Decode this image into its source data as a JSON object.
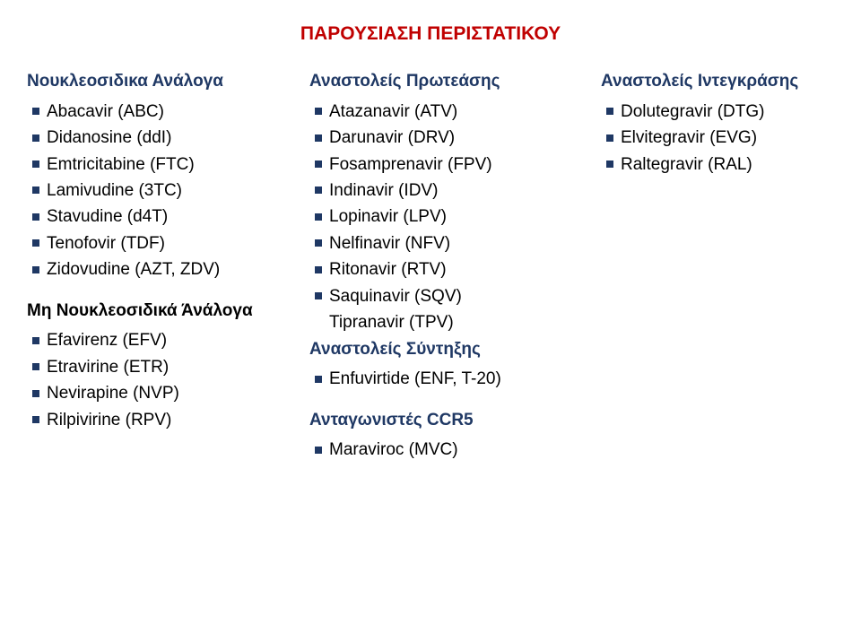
{
  "title": {
    "text": "ΠΑΡΟΥΣΙΑΣΗ ΠΕΡΙΣΤΑΤΙΚΟΥ",
    "color": "#c00000"
  },
  "colors": {
    "bullet": "#1f3864",
    "heading_col1_a": "#1f3864",
    "heading_col1_b": "#000000",
    "heading_col2_a": "#1f3864",
    "heading_col2_b": "#1f3864",
    "heading_col2_c": "#1f3864",
    "heading_col3_a": "#1f3864",
    "text": "#000000"
  },
  "columns": [
    {
      "sections": [
        {
          "heading": "Νουκλεοσιδικα Ανάλογα",
          "heading_color_key": "heading_col1_a",
          "items": [
            {
              "text": "Abacavir (ABC)"
            },
            {
              "text": "Didanosine (ddI)"
            },
            {
              "text": "Emtricitabine (FTC)"
            },
            {
              "text": "Lamivudine (3TC)"
            },
            {
              "text": "Stavudine (d4T)"
            },
            {
              "text": "Tenofovir (TDF)"
            },
            {
              "text": "Zidovudine (AZT, ZDV)"
            }
          ]
        },
        {
          "heading": "Μη Νουκλεοσιδικά Άνάλογα",
          "heading_color_key": "heading_col1_b",
          "items": [
            {
              "text": "Efavirenz (EFV)"
            },
            {
              "text": "Etravirine (ETR)"
            },
            {
              "text": "Nevirapine (NVP)"
            },
            {
              "text": "Rilpivirine (RPV)"
            }
          ]
        }
      ]
    },
    {
      "sections": [
        {
          "heading": "Αναστολείς Πρωτεάσης",
          "heading_color_key": "heading_col2_a",
          "items": [
            {
              "text": "Atazanavir (ATV)"
            },
            {
              "text": "Darunavir (DRV)"
            },
            {
              "text": "Fosamprenavir (FPV)"
            },
            {
              "text": "Indinavir (IDV)"
            },
            {
              "text": "Lopinavir (LPV)"
            },
            {
              "text": "Nelfinavir (NFV)"
            },
            {
              "text": "Ritonavir (RTV)"
            },
            {
              "text": "Saquinavir (SQV)"
            },
            {
              "text": "Tipranavir (TPV)",
              "nobullet": true
            }
          ]
        },
        {
          "heading": "Αναστολείς Σύντηξης",
          "heading_color_key": "heading_col2_b",
          "tight": true,
          "items": [
            {
              "text": "Enfuvirtide (ENF, T-20)"
            }
          ]
        },
        {
          "heading": "Ανταγωνιστές CCR5",
          "heading_color_key": "heading_col2_c",
          "items": [
            {
              "text": "Maraviroc (MVC)"
            }
          ]
        }
      ]
    },
    {
      "sections": [
        {
          "heading": "Αναστολείς Ιντεγκράσης",
          "heading_color_key": "heading_col3_a",
          "items": [
            {
              "text": "Dolutegravir (DTG)"
            },
            {
              "text": "Elvitegravir (EVG)"
            },
            {
              "text": "Raltegravir (RAL)"
            }
          ]
        }
      ]
    }
  ]
}
